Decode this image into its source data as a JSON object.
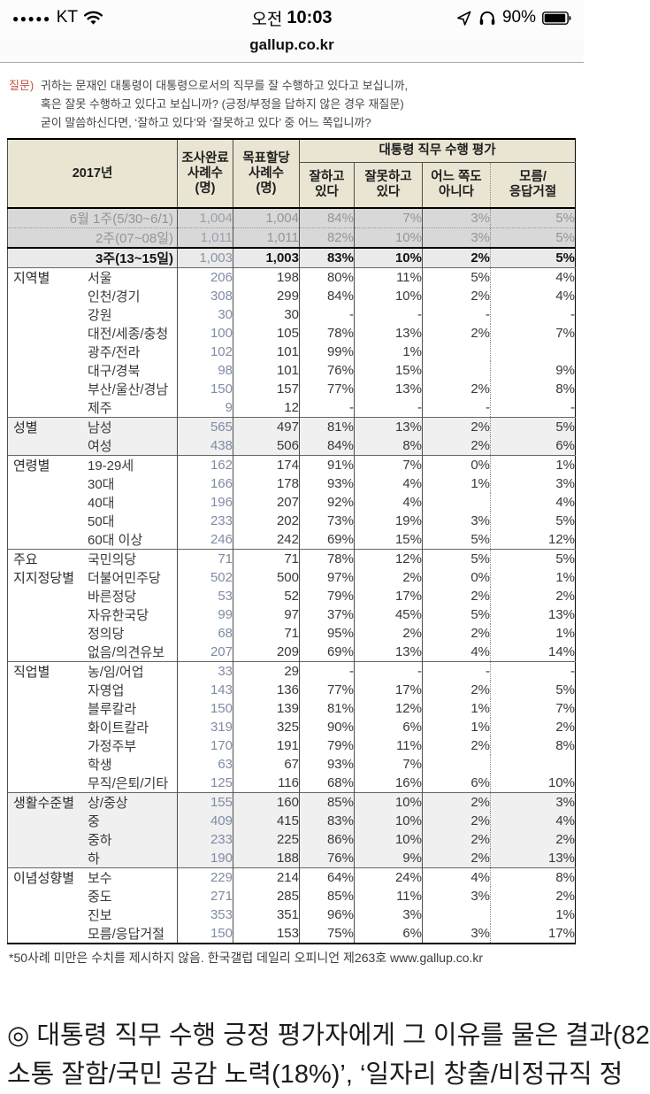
{
  "status_bar": {
    "signal_dots": "●●●●●",
    "carrier": "KT",
    "time_prefix": "오전",
    "time": "10:03",
    "battery_percent": "90%"
  },
  "browser": {
    "url": "gallup.co.kr"
  },
  "question": {
    "prefix": "질문) ",
    "lines": [
      "귀하는 문재인 대통령이 대통령으로서의 직무를 잘 수행하고 있다고 보십니까,",
      "혹은 잘못 수행하고 있다고 보십니까? (긍정/부정을 답하지 않은 경우 재질문)",
      "굳이 말씀하신다면, ‘잘하고 있다’와 ‘잘못하고 있다’ 중 어느 쪽입니까?"
    ]
  },
  "table": {
    "year_header": "2017년",
    "col_completed": [
      "조사완료",
      "사례수",
      "(명)"
    ],
    "col_target": [
      "목표할당",
      "사례수",
      "(명)"
    ],
    "group_header": "대통령 직무 수행 평가",
    "col_good": [
      "잘하고",
      "있다"
    ],
    "col_bad": [
      "잘못하고",
      "있다"
    ],
    "col_neither": [
      "어느 쪽도",
      "아니다"
    ],
    "col_dk": [
      "모름/",
      "응답거절"
    ],
    "rows": [
      {
        "label": "6월 1주(5/30~6/1)",
        "c": "1,004",
        "t": "1,004",
        "good": "84%",
        "bad": "7%",
        "neither": "3%",
        "dk": "5%",
        "cls": "past"
      },
      {
        "label": "2주(07~08일)",
        "c": "1,011",
        "t": "1,011",
        "good": "82%",
        "bad": "10%",
        "neither": "3%",
        "dk": "5%",
        "cls": "past",
        "sep": "dotted"
      },
      {
        "label": "3주(13~15일)",
        "c": "1,003",
        "t": "1,003",
        "good": "83%",
        "bad": "10%",
        "neither": "2%",
        "dk": "5%",
        "cls": "current",
        "sep": "thick"
      },
      {
        "group": "지역별",
        "label": "서울",
        "c": "206",
        "t": "198",
        "good": "80%",
        "bad": "11%",
        "neither": "5%",
        "dk": "4%",
        "sep": "thin"
      },
      {
        "label": "인천/경기",
        "c": "308",
        "t": "299",
        "good": "84%",
        "bad": "10%",
        "neither": "2%",
        "dk": "4%"
      },
      {
        "label": "강원",
        "c": "30",
        "t": "30",
        "good": "-",
        "bad": "-",
        "neither": "-",
        "dk": "-"
      },
      {
        "label": "대전/세종/충청",
        "c": "100",
        "t": "105",
        "good": "78%",
        "bad": "13%",
        "neither": "2%",
        "dk": "7%"
      },
      {
        "label": "광주/전라",
        "c": "102",
        "t": "101",
        "good": "99%",
        "bad": "1%",
        "neither": "",
        "dk": ""
      },
      {
        "label": "대구/경북",
        "c": "98",
        "t": "101",
        "good": "76%",
        "bad": "15%",
        "neither": "",
        "dk": "9%"
      },
      {
        "label": "부산/울산/경남",
        "c": "150",
        "t": "157",
        "good": "77%",
        "bad": "13%",
        "neither": "2%",
        "dk": "8%"
      },
      {
        "label": "제주",
        "c": "9",
        "t": "12",
        "good": "-",
        "bad": "-",
        "neither": "-",
        "dk": "-"
      },
      {
        "group": "성별",
        "label": "남성",
        "c": "565",
        "t": "497",
        "good": "81%",
        "bad": "13%",
        "neither": "2%",
        "dk": "5%",
        "shade": true,
        "sep": "thin"
      },
      {
        "label": "여성",
        "c": "438",
        "t": "506",
        "good": "84%",
        "bad": "8%",
        "neither": "2%",
        "dk": "6%",
        "shade": true
      },
      {
        "group": "연령별",
        "label": "19-29세",
        "c": "162",
        "t": "174",
        "good": "91%",
        "bad": "7%",
        "neither": "0%",
        "dk": "1%",
        "sep": "thin"
      },
      {
        "label": "30대",
        "c": "166",
        "t": "178",
        "good": "93%",
        "bad": "4%",
        "neither": "1%",
        "dk": "3%"
      },
      {
        "label": "40대",
        "c": "196",
        "t": "207",
        "good": "92%",
        "bad": "4%",
        "neither": "",
        "dk": "4%"
      },
      {
        "label": "50대",
        "c": "233",
        "t": "202",
        "good": "73%",
        "bad": "19%",
        "neither": "3%",
        "dk": "5%"
      },
      {
        "label": "60대 이상",
        "c": "246",
        "t": "242",
        "good": "69%",
        "bad": "15%",
        "neither": "5%",
        "dk": "12%"
      },
      {
        "group": "주요",
        "label": "국민의당",
        "c": "71",
        "t": "71",
        "good": "78%",
        "bad": "12%",
        "neither": "5%",
        "dk": "5%",
        "sep": "thin"
      },
      {
        "group": "지지정당별",
        "label": "더불어민주당",
        "c": "502",
        "t": "500",
        "good": "97%",
        "bad": "2%",
        "neither": "0%",
        "dk": "1%"
      },
      {
        "label": "바른정당",
        "c": "53",
        "t": "52",
        "good": "79%",
        "bad": "17%",
        "neither": "2%",
        "dk": "2%"
      },
      {
        "label": "자유한국당",
        "c": "99",
        "t": "97",
        "good": "37%",
        "bad": "45%",
        "neither": "5%",
        "dk": "13%"
      },
      {
        "label": "정의당",
        "c": "68",
        "t": "71",
        "good": "95%",
        "bad": "2%",
        "neither": "2%",
        "dk": "1%"
      },
      {
        "label": "없음/의견유보",
        "c": "207",
        "t": "209",
        "good": "69%",
        "bad": "13%",
        "neither": "4%",
        "dk": "14%"
      },
      {
        "group": "직업별",
        "label": "농/임/어업",
        "c": "33",
        "t": "29",
        "good": "-",
        "bad": "-",
        "neither": "-",
        "dk": "-",
        "sep": "thin"
      },
      {
        "label": "자영업",
        "c": "143",
        "t": "136",
        "good": "77%",
        "bad": "17%",
        "neither": "2%",
        "dk": "5%"
      },
      {
        "label": "블루칼라",
        "c": "150",
        "t": "139",
        "good": "81%",
        "bad": "12%",
        "neither": "1%",
        "dk": "7%"
      },
      {
        "label": "화이트칼라",
        "c": "319",
        "t": "325",
        "good": "90%",
        "bad": "6%",
        "neither": "1%",
        "dk": "2%"
      },
      {
        "label": "가정주부",
        "c": "170",
        "t": "191",
        "good": "79%",
        "bad": "11%",
        "neither": "2%",
        "dk": "8%"
      },
      {
        "label": "학생",
        "c": "63",
        "t": "67",
        "good": "93%",
        "bad": "7%",
        "neither": "",
        "dk": ""
      },
      {
        "label": "무직/은퇴/기타",
        "c": "125",
        "t": "116",
        "good": "68%",
        "bad": "16%",
        "neither": "6%",
        "dk": "10%"
      },
      {
        "group": "생활수준별",
        "label": "상/중상",
        "c": "155",
        "t": "160",
        "good": "85%",
        "bad": "10%",
        "neither": "2%",
        "dk": "3%",
        "shade": true,
        "sep": "thin"
      },
      {
        "label": "중",
        "c": "409",
        "t": "415",
        "good": "83%",
        "bad": "10%",
        "neither": "2%",
        "dk": "4%",
        "shade": true
      },
      {
        "label": "중하",
        "c": "233",
        "t": "225",
        "good": "86%",
        "bad": "10%",
        "neither": "2%",
        "dk": "2%",
        "shade": true
      },
      {
        "label": "하",
        "c": "190",
        "t": "188",
        "good": "76%",
        "bad": "9%",
        "neither": "2%",
        "dk": "13%",
        "shade": true
      },
      {
        "group": "이념성향별",
        "label": "보수",
        "c": "229",
        "t": "214",
        "good": "64%",
        "bad": "24%",
        "neither": "4%",
        "dk": "8%",
        "sep": "thin"
      },
      {
        "label": "중도",
        "c": "271",
        "t": "285",
        "good": "85%",
        "bad": "11%",
        "neither": "3%",
        "dk": "2%"
      },
      {
        "label": "진보",
        "c": "353",
        "t": "351",
        "good": "96%",
        "bad": "3%",
        "neither": "",
        "dk": "1%"
      },
      {
        "label": "모름/응답거절",
        "c": "150",
        "t": "153",
        "good": "75%",
        "bad": "6%",
        "neither": "3%",
        "dk": "17%"
      }
    ]
  },
  "footnote": {
    "text": "*50사례 미만은 수치를 제시하지 않음. 한국갤럽 데일리 오피니언 제263호 ",
    "url": "www.gallup.co.kr"
  },
  "bottom": {
    "line1": "◎ 대통령 직무 수행 긍정 평가자에게 그 이유를 물은 결과(82",
    "line2": "소통 잘함/국민 공감 노력(18%)’, ‘일자리 창출/비정규직 정"
  },
  "colors": {
    "header_beige": "#e9e5d2",
    "completed_col_text": "#7e8ba2",
    "question_prefix_red": "#c4513f",
    "past_row_bg": "#d8d8d8",
    "shade_row_bg": "#f0f0f1"
  }
}
